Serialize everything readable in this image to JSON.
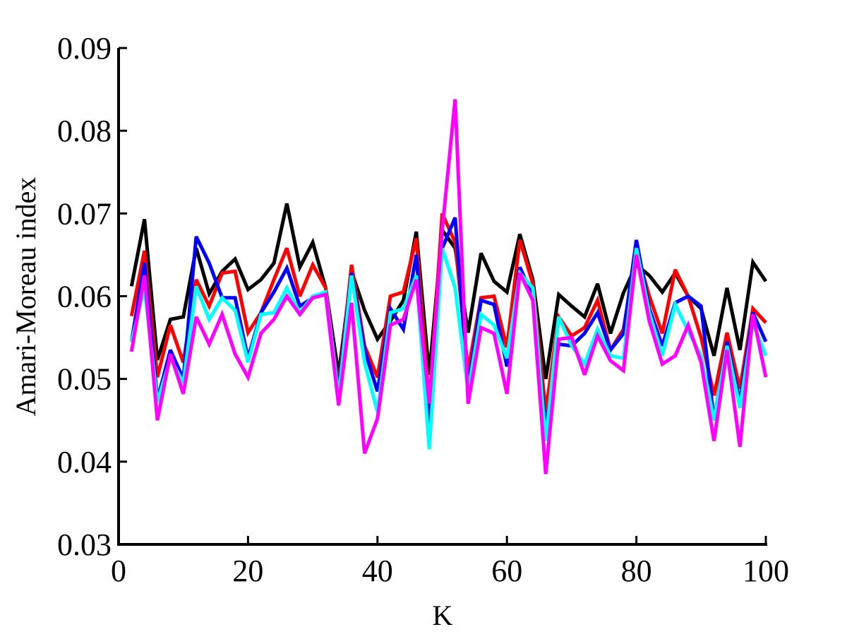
{
  "chart_data": {
    "type": "line",
    "title": "",
    "xlabel": "K",
    "ylabel": "Amari-Moreau index",
    "xlim": [
      0,
      100
    ],
    "ylim": [
      0.03,
      0.09
    ],
    "xticks": [
      0,
      20,
      40,
      60,
      80,
      100
    ],
    "xtick_labels": [
      "0",
      "20",
      "40",
      "60",
      "80",
      "100"
    ],
    "yticks": [
      0.03,
      0.04,
      0.05,
      0.06,
      0.07,
      0.08,
      0.09
    ],
    "ytick_labels": [
      "0.03",
      "0.04",
      "0.05",
      "0.06",
      "0.07",
      "0.08",
      "0.09"
    ],
    "grid": false,
    "legend": "none",
    "x": [
      2,
      4,
      6,
      8,
      10,
      12,
      14,
      16,
      18,
      20,
      22,
      24,
      26,
      28,
      30,
      32,
      34,
      36,
      38,
      40,
      42,
      44,
      46,
      48,
      50,
      52,
      54,
      56,
      58,
      60,
      62,
      64,
      66,
      68,
      70,
      72,
      74,
      76,
      78,
      80,
      82,
      84,
      86,
      88,
      90,
      92,
      94,
      96,
      98,
      100
    ],
    "series": [
      {
        "color": "#000000",
        "values": [
          0.0612,
          0.0693,
          0.0523,
          0.0572,
          0.0575,
          0.0658,
          0.0603,
          0.063,
          0.0645,
          0.0608,
          0.062,
          0.064,
          0.0712,
          0.0635,
          0.0665,
          0.061,
          0.0505,
          0.063,
          0.0583,
          0.0548,
          0.057,
          0.0595,
          0.0678,
          0.0505,
          0.068,
          0.0658,
          0.0556,
          0.0652,
          0.0618,
          0.0605,
          0.0675,
          0.062,
          0.05,
          0.0602,
          0.0588,
          0.0575,
          0.0615,
          0.0555,
          0.0604,
          0.0638,
          0.0625,
          0.0605,
          0.0628,
          0.06,
          0.0585,
          0.0528,
          0.061,
          0.0535,
          0.0641,
          0.0618
        ]
      },
      {
        "color": "#ff0000",
        "values": [
          0.0576,
          0.0655,
          0.0502,
          0.0565,
          0.052,
          0.062,
          0.0588,
          0.0628,
          0.063,
          0.0556,
          0.058,
          0.062,
          0.0658,
          0.06,
          0.0638,
          0.061,
          0.049,
          0.0638,
          0.054,
          0.0502,
          0.06,
          0.0605,
          0.067,
          0.0468,
          0.07,
          0.0665,
          0.051,
          0.0598,
          0.06,
          0.0538,
          0.0668,
          0.0615,
          0.046,
          0.0575,
          0.0552,
          0.0562,
          0.0595,
          0.0535,
          0.056,
          0.0655,
          0.06,
          0.0555,
          0.0632,
          0.06,
          0.055,
          0.048,
          0.0556,
          0.0488,
          0.0585,
          0.0568
        ]
      },
      {
        "color": "#0000ff",
        "values": [
          0.0545,
          0.064,
          0.0475,
          0.0535,
          0.05,
          0.0672,
          0.064,
          0.0598,
          0.0598,
          0.0525,
          0.058,
          0.0605,
          0.0634,
          0.0588,
          0.0598,
          0.0605,
          0.0485,
          0.0628,
          0.0535,
          0.0485,
          0.0585,
          0.056,
          0.065,
          0.044,
          0.0658,
          0.0695,
          0.049,
          0.0595,
          0.059,
          0.0515,
          0.0635,
          0.06,
          0.044,
          0.0542,
          0.054,
          0.0555,
          0.058,
          0.0535,
          0.0555,
          0.0668,
          0.0585,
          0.054,
          0.0592,
          0.06,
          0.0588,
          0.045,
          0.0545,
          0.0472,
          0.058,
          0.0545
        ]
      },
      {
        "color": "#00ffff",
        "values": [
          0.0545,
          0.061,
          0.0472,
          0.0525,
          0.0495,
          0.0612,
          0.0572,
          0.0598,
          0.0583,
          0.052,
          0.0578,
          0.058,
          0.061,
          0.058,
          0.06,
          0.0605,
          0.0478,
          0.0625,
          0.052,
          0.046,
          0.058,
          0.0585,
          0.0625,
          0.0415,
          0.0658,
          0.061,
          0.0485,
          0.0578,
          0.0565,
          0.0525,
          0.0628,
          0.061,
          0.0425,
          0.0575,
          0.054,
          0.0518,
          0.056,
          0.0528,
          0.0525,
          0.0658,
          0.058,
          0.0528,
          0.059,
          0.0558,
          0.0528,
          0.045,
          0.054,
          0.0465,
          0.0568,
          0.0528
        ]
      },
      {
        "color": "#ff00ff",
        "values": [
          0.0533,
          0.0625,
          0.045,
          0.053,
          0.0482,
          0.0575,
          0.0542,
          0.0578,
          0.053,
          0.0502,
          0.0555,
          0.0572,
          0.06,
          0.0578,
          0.0598,
          0.0602,
          0.0468,
          0.0592,
          0.041,
          0.0452,
          0.0565,
          0.0572,
          0.062,
          0.047,
          0.068,
          0.0838,
          0.047,
          0.0562,
          0.0555,
          0.0482,
          0.0628,
          0.0595,
          0.0385,
          0.0548,
          0.055,
          0.0505,
          0.0552,
          0.0522,
          0.051,
          0.065,
          0.057,
          0.0518,
          0.0528,
          0.0565,
          0.052,
          0.0425,
          0.0535,
          0.0418,
          0.0578,
          0.0502
        ]
      }
    ]
  }
}
